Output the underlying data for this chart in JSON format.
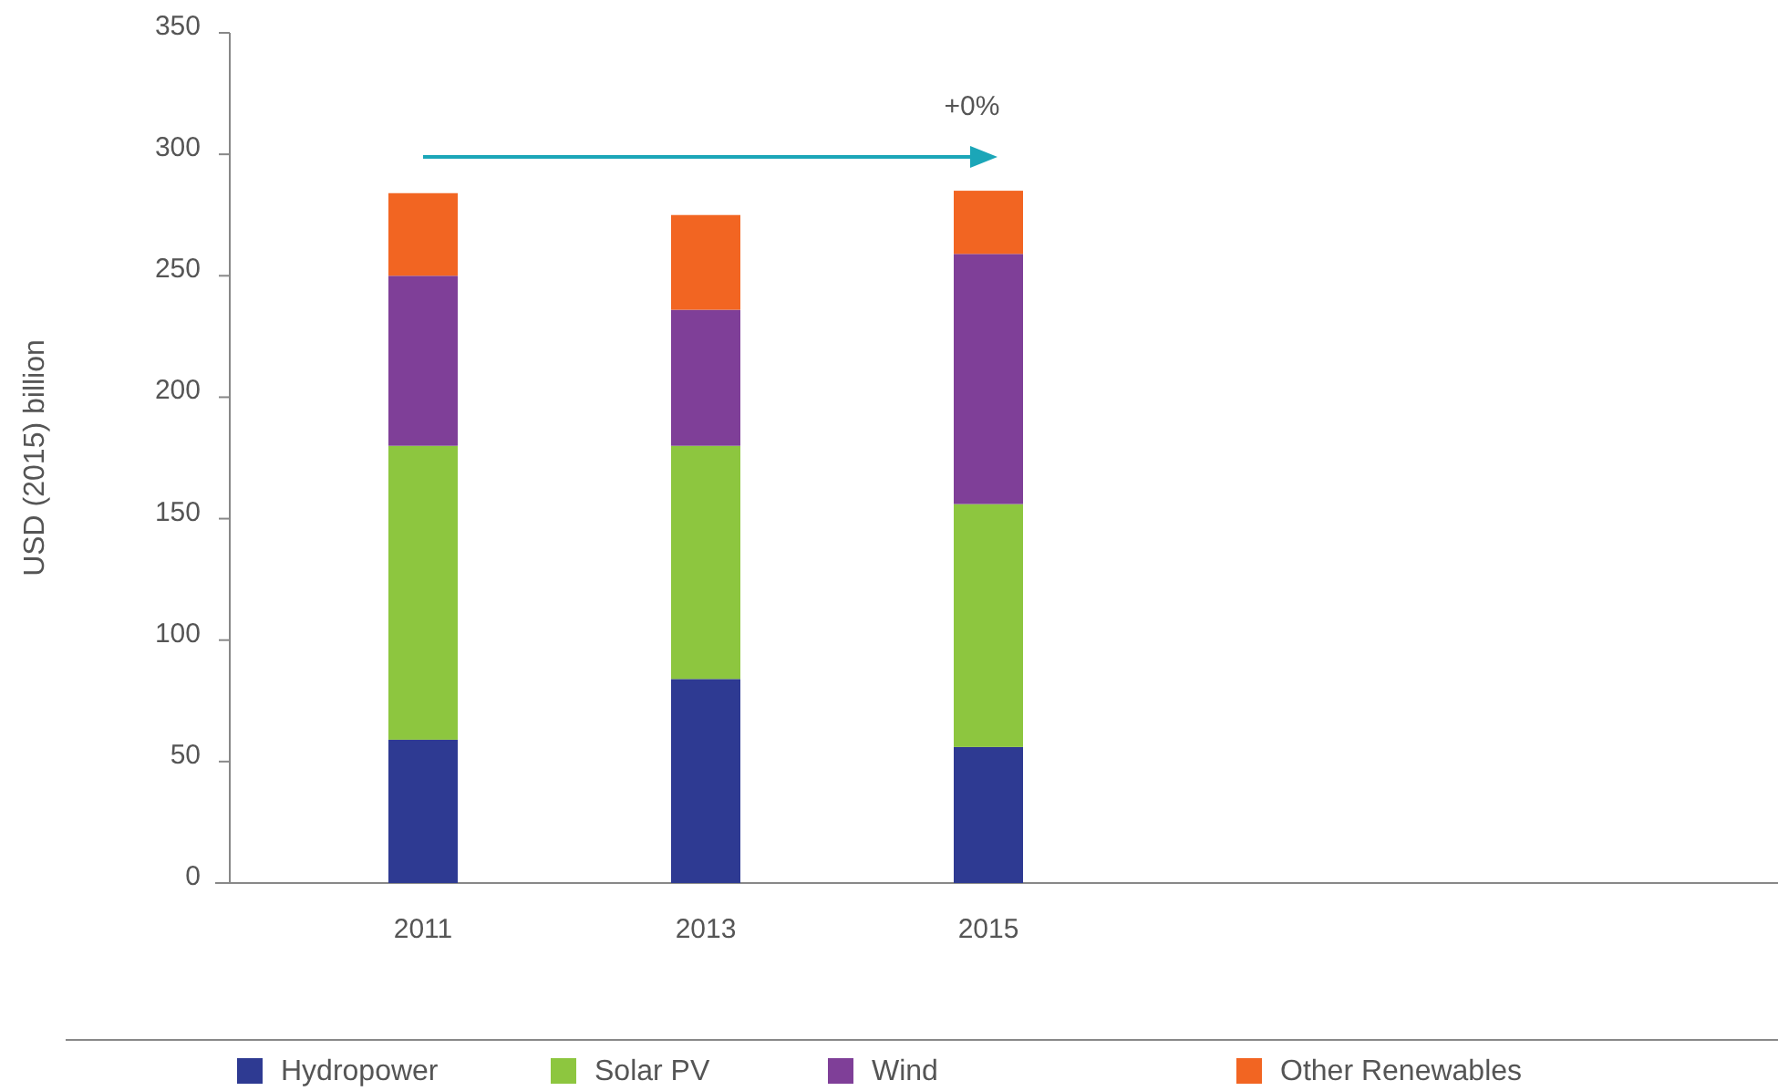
{
  "chart_data": {
    "type": "bar",
    "stacked": true,
    "ylabel": "USD (2015) billion",
    "categories": [
      "2011",
      "2013",
      "2015"
    ],
    "series": [
      {
        "name": "Hydropower",
        "color": "#2e3a92",
        "values": [
          59,
          84,
          56
        ]
      },
      {
        "name": "Solar PV",
        "color": "#8dc63f",
        "values": [
          121,
          96,
          100
        ]
      },
      {
        "name": "Wind",
        "color": "#7f3f98",
        "values": [
          70,
          56,
          103
        ]
      },
      {
        "name": "Other Renewables",
        "color": "#f26522",
        "values": [
          34,
          39,
          26
        ]
      }
    ],
    "ylim": [
      0,
      350
    ],
    "yticks": [
      0,
      50,
      100,
      150,
      200,
      250,
      300,
      350
    ],
    "grid": false,
    "legend": "bottom",
    "annotations": [
      "+0%"
    ]
  }
}
